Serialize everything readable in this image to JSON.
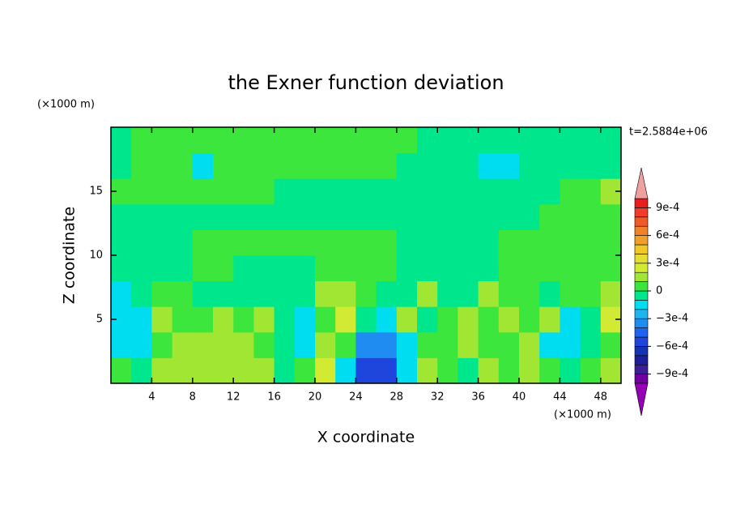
{
  "chart_data": {
    "type": "contour",
    "title": "the Exner function deviation",
    "x_label": "X coordinate",
    "y_label": "Z coordinate",
    "x_unit": "(×1000 m)",
    "y_unit": "(×1000 m)",
    "time_label": "t=2.5884e+06",
    "xlim": [
      0,
      50
    ],
    "ylim": [
      0,
      20
    ],
    "xticks": [
      4,
      8,
      12,
      16,
      20,
      24,
      28,
      32,
      36,
      40,
      44,
      48
    ],
    "yticks": [
      5,
      10,
      15
    ],
    "x": [
      1,
      3,
      5,
      7,
      9,
      11,
      13,
      15,
      17,
      19,
      21,
      23,
      25,
      27,
      29,
      31,
      33,
      35,
      37,
      39,
      41,
      43,
      45,
      47,
      49
    ],
    "z": [
      1,
      3,
      5,
      7,
      9,
      11,
      13,
      15,
      17,
      19
    ],
    "values": [
      [
        5e-05,
        -5e-05,
        0.00015,
        0.00015,
        0.00015,
        0.00015,
        0.00015,
        0.00015,
        -5e-05,
        5e-05,
        0.00025,
        -0.00015,
        -0.00055,
        -0.00055,
        -0.00015,
        0.00015,
        5e-05,
        -5e-05,
        0.00015,
        5e-05,
        0.00015,
        5e-05,
        -5e-05,
        5e-05,
        0.00015
      ],
      [
        -0.00015,
        -0.00015,
        5e-05,
        0.00015,
        0.00015,
        0.00015,
        0.00015,
        5e-05,
        -5e-05,
        -0.00015,
        0.00015,
        5e-05,
        -0.00035,
        -0.00035,
        -0.00015,
        5e-05,
        5e-05,
        0.00015,
        5e-05,
        5e-05,
        0.00015,
        -0.00015,
        -0.00015,
        -5e-05,
        5e-05
      ],
      [
        -0.00015,
        -0.00015,
        0.00015,
        5e-05,
        5e-05,
        0.00015,
        5e-05,
        0.00015,
        -5e-05,
        -0.00015,
        5e-05,
        0.00025,
        -5e-05,
        -0.00015,
        0.00015,
        -5e-05,
        5e-05,
        0.00015,
        5e-05,
        0.00015,
        5e-05,
        0.00015,
        -0.00015,
        -5e-05,
        0.00025
      ],
      [
        -0.00015,
        -5e-05,
        5e-05,
        5e-05,
        -5e-05,
        -5e-05,
        -5e-05,
        -5e-05,
        -5e-05,
        -5e-05,
        0.00015,
        0.00015,
        5e-05,
        -5e-05,
        -5e-05,
        0.00015,
        -5e-05,
        -5e-05,
        0.00015,
        5e-05,
        5e-05,
        -5e-05,
        5e-05,
        5e-05,
        0.00015
      ],
      [
        -5e-05,
        -5e-05,
        -5e-05,
        -5e-05,
        5e-05,
        5e-05,
        -5e-05,
        -5e-05,
        -5e-05,
        -5e-05,
        5e-05,
        5e-05,
        5e-05,
        5e-05,
        -5e-05,
        -5e-05,
        -5e-05,
        -5e-05,
        -5e-05,
        5e-05,
        5e-05,
        5e-05,
        5e-05,
        5e-05,
        5e-05
      ],
      [
        -5e-05,
        -5e-05,
        -5e-05,
        -5e-05,
        5e-05,
        5e-05,
        5e-05,
        5e-05,
        5e-05,
        5e-05,
        5e-05,
        5e-05,
        5e-05,
        5e-05,
        -5e-05,
        -5e-05,
        -5e-05,
        -5e-05,
        -5e-05,
        5e-05,
        5e-05,
        5e-05,
        5e-05,
        5e-05,
        5e-05
      ],
      [
        -5e-05,
        -5e-05,
        -5e-05,
        -5e-05,
        -5e-05,
        -5e-05,
        -5e-05,
        -5e-05,
        -5e-05,
        -5e-05,
        -5e-05,
        -5e-05,
        -5e-05,
        -5e-05,
        -5e-05,
        -5e-05,
        -5e-05,
        -5e-05,
        -5e-05,
        -5e-05,
        -5e-05,
        5e-05,
        5e-05,
        5e-05,
        5e-05
      ],
      [
        5e-05,
        5e-05,
        5e-05,
        5e-05,
        5e-05,
        5e-05,
        5e-05,
        5e-05,
        -5e-05,
        -5e-05,
        -5e-05,
        -5e-05,
        -5e-05,
        -5e-05,
        -5e-05,
        -5e-05,
        -5e-05,
        -5e-05,
        -5e-05,
        -5e-05,
        -5e-05,
        -5e-05,
        5e-05,
        5e-05,
        0.00015
      ],
      [
        -5e-05,
        5e-05,
        5e-05,
        5e-05,
        -0.00015,
        5e-05,
        5e-05,
        5e-05,
        5e-05,
        5e-05,
        5e-05,
        5e-05,
        5e-05,
        5e-05,
        -5e-05,
        -5e-05,
        -5e-05,
        -5e-05,
        -0.00015,
        -0.00015,
        -5e-05,
        -5e-05,
        -5e-05,
        -5e-05,
        -5e-05
      ],
      [
        -5e-05,
        5e-05,
        5e-05,
        5e-05,
        5e-05,
        5e-05,
        5e-05,
        5e-05,
        5e-05,
        5e-05,
        5e-05,
        5e-05,
        5e-05,
        5e-05,
        5e-05,
        -5e-05,
        -5e-05,
        -5e-05,
        -5e-05,
        -5e-05,
        -5e-05,
        -5e-05,
        -5e-05,
        -5e-05,
        -5e-05
      ]
    ],
    "levels": [
      -0.001,
      -0.0009,
      -0.0008,
      -0.0007,
      -0.0006,
      -0.0005,
      -0.0004,
      -0.0003,
      -0.0002,
      -0.0001,
      0,
      0.0001,
      0.0002,
      0.0003,
      0.0004,
      0.0005,
      0.0006,
      0.0007,
      0.0008,
      0.0009,
      0.001
    ],
    "colors": [
      "#9600b4",
      "#6e00a0",
      "#3c1e96",
      "#1e1e9a",
      "#1432b4",
      "#1e46dc",
      "#1e64f0",
      "#1e8cf0",
      "#1eb4f0",
      "#00dcf0",
      "#00e68c",
      "#3ce63c",
      "#a0e632",
      "#d2eb32",
      "#e6dc32",
      "#f0c828",
      "#f0a028",
      "#f08228",
      "#f05a28",
      "#f03c28",
      "#e61e1e",
      "#f0a0a0"
    ],
    "colorbar_ticks": [
      {
        "value": 0.0009,
        "label": "9e-4"
      },
      {
        "value": 0.0006,
        "label": "6e-4"
      },
      {
        "value": 0.0003,
        "label": "3e-4"
      },
      0,
      {
        "value": -0.0003,
        "label": "−3e-4"
      },
      {
        "value": -0.0006,
        "label": "−6e-4"
      },
      {
        "value": -0.0009,
        "label": "−9e-4"
      }
    ]
  }
}
